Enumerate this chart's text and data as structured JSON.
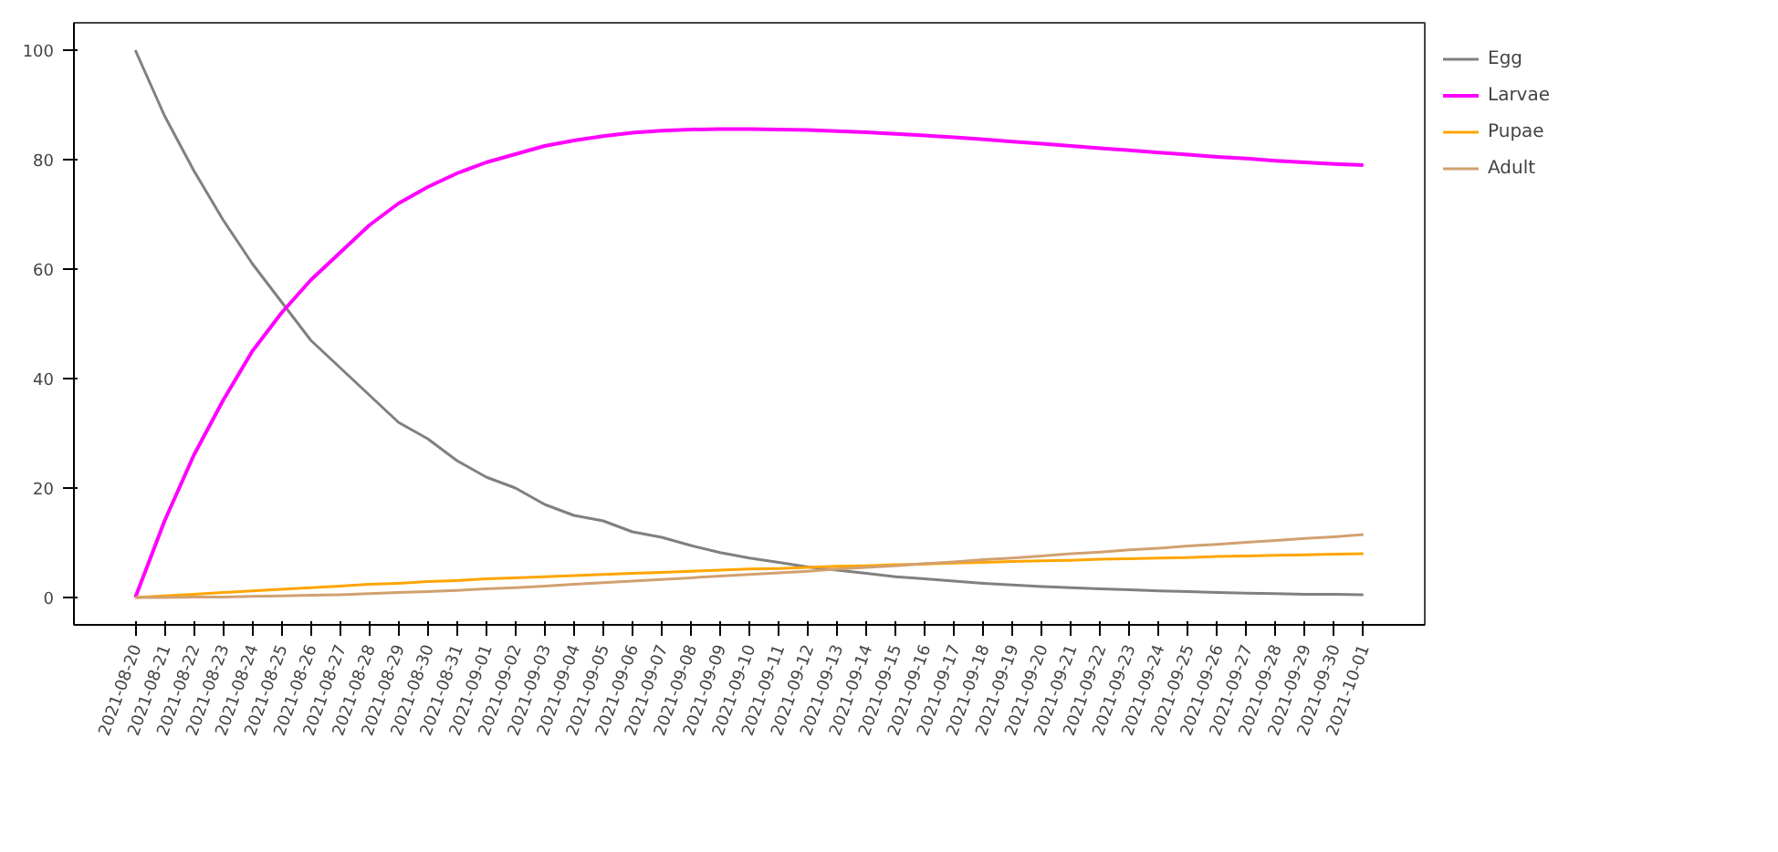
{
  "chart_data": {
    "type": "line",
    "categories": [
      "2021-08-20",
      "2021-08-21",
      "2021-08-22",
      "2021-08-23",
      "2021-08-24",
      "2021-08-25",
      "2021-08-26",
      "2021-08-27",
      "2021-08-28",
      "2021-08-29",
      "2021-08-30",
      "2021-08-31",
      "2021-09-01",
      "2021-09-02",
      "2021-09-03",
      "2021-09-04",
      "2021-09-05",
      "2021-09-06",
      "2021-09-07",
      "2021-09-08",
      "2021-09-09",
      "2021-09-10",
      "2021-09-11",
      "2021-09-12",
      "2021-09-13",
      "2021-09-14",
      "2021-09-15",
      "2021-09-16",
      "2021-09-17",
      "2021-09-18",
      "2021-09-19",
      "2021-09-20",
      "2021-09-21",
      "2021-09-22",
      "2021-09-23",
      "2021-09-24",
      "2021-09-25",
      "2021-09-26",
      "2021-09-27",
      "2021-09-28",
      "2021-09-29",
      "2021-09-30",
      "2021-10-01"
    ],
    "series": [
      {
        "name": "Egg",
        "color": "#808080",
        "values": [
          100,
          88,
          78,
          69,
          61,
          54,
          47,
          42,
          37,
          32,
          29,
          25,
          22,
          20,
          17,
          15,
          14,
          12,
          11,
          9.5,
          8.2,
          7.2,
          6.4,
          5.6,
          5,
          4.4,
          3.8,
          3.4,
          3,
          2.6,
          2.3,
          2,
          1.8,
          1.6,
          1.4,
          1.2,
          1.1,
          0.9,
          0.8,
          0.7,
          0.6,
          0.6,
          0.5
        ]
      },
      {
        "name": "Larvae",
        "color": "#ff00ff",
        "values": [
          0,
          14,
          26,
          36,
          45,
          52,
          58,
          63,
          68,
          72,
          75,
          77.5,
          79.5,
          81,
          82.5,
          83.5,
          84.3,
          84.9,
          85.3,
          85.5,
          85.6,
          85.6,
          85.5,
          85.4,
          85.2,
          85,
          84.7,
          84.4,
          84.1,
          83.7,
          83.3,
          82.9,
          82.5,
          82.1,
          81.7,
          81.3,
          80.9,
          80.5,
          80.2,
          79.8,
          79.5,
          79.2,
          79
        ]
      },
      {
        "name": "Pupae",
        "color": "#ffa500",
        "values": [
          0,
          0.3,
          0.6,
          0.9,
          1.2,
          1.5,
          1.8,
          2.1,
          2.4,
          2.6,
          2.9,
          3.1,
          3.4,
          3.6,
          3.8,
          4.0,
          4.2,
          4.4,
          4.6,
          4.8,
          5.0,
          5.2,
          5.3,
          5.5,
          5.7,
          5.8,
          6.0,
          6.1,
          6.3,
          6.4,
          6.6,
          6.7,
          6.8,
          7.0,
          7.1,
          7.2,
          7.3,
          7.5,
          7.6,
          7.7,
          7.8,
          7.9,
          8.0
        ]
      },
      {
        "name": "Adult",
        "color": "#d2a070",
        "values": [
          0,
          0,
          0.1,
          0.1,
          0.2,
          0.3,
          0.4,
          0.5,
          0.7,
          0.9,
          1.1,
          1.3,
          1.6,
          1.8,
          2.1,
          2.4,
          2.7,
          3.0,
          3.3,
          3.6,
          3.9,
          4.2,
          4.5,
          4.8,
          5.2,
          5.5,
          5.8,
          6.2,
          6.5,
          6.9,
          7.2,
          7.6,
          8.0,
          8.3,
          8.7,
          9.0,
          9.4,
          9.7,
          10.1,
          10.4,
          10.8,
          11.1,
          11.5
        ]
      }
    ],
    "ylim": [
      -5,
      105
    ],
    "yticks": [
      0,
      20,
      40,
      60,
      80,
      100
    ],
    "legend": "top right",
    "grid": false,
    "line_style": "solid"
  }
}
